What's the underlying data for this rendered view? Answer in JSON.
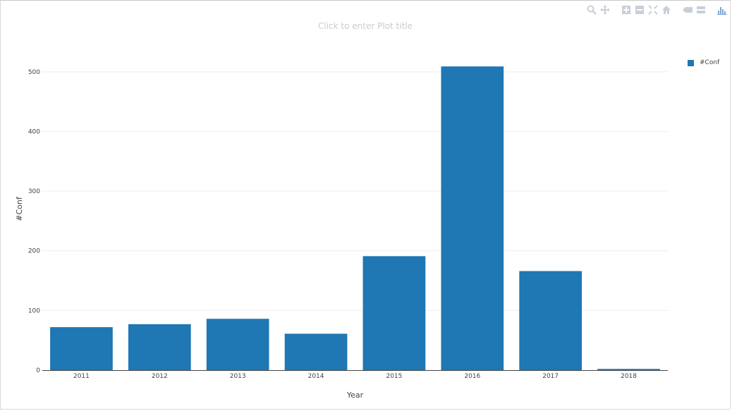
{
  "plot": {
    "title_placeholder": "Click to enter Plot title"
  },
  "modebar": {
    "icons": [
      "zoom-icon",
      "pan-icon",
      "zoom-in-icon",
      "zoom-out-icon",
      "autoscale-icon",
      "reset-axes-icon",
      "hover-closest-icon",
      "hover-compare-icon",
      "plotly-logo-icon"
    ],
    "color": "#c9cfd9",
    "accent": "#7fa6d4"
  },
  "chart_data": {
    "type": "bar",
    "categories": [
      "2011",
      "2012",
      "2013",
      "2014",
      "2015",
      "2016",
      "2017",
      "2018"
    ],
    "series": [
      {
        "name": "#Conf",
        "values": [
          72,
          77,
          86,
          61,
          191,
          509,
          166,
          2
        ],
        "color": "#1f77b4"
      }
    ],
    "title": "",
    "xlabel": "Year",
    "ylabel": "#Conf",
    "ylim": [
      0,
      540
    ],
    "yticks": [
      0,
      100,
      200,
      300,
      400,
      500
    ],
    "grid": true,
    "legend_position": "top-right"
  }
}
